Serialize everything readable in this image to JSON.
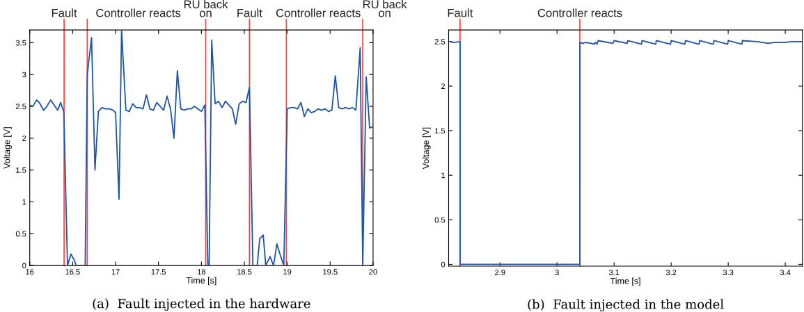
{
  "chart_data": [
    {
      "type": "line",
      "xlabel": "Time [s]",
      "ylabel": "Voltage [V]",
      "xlim": [
        16,
        20
      ],
      "ylim": [
        0,
        3.7
      ],
      "xticks": [
        16,
        16.5,
        17,
        17.5,
        18,
        18.5,
        19,
        19.5,
        20
      ],
      "yticks": [
        0,
        0.5,
        1,
        1.5,
        2,
        2.5,
        3,
        3.5
      ],
      "grid": false,
      "series": [
        {
          "color": "#1c54a8",
          "x": [
            16,
            16.035,
            16.08,
            16.116,
            16.16,
            16.2,
            16.243,
            16.284,
            16.325,
            16.36,
            16.397,
            16.44,
            16.48,
            16.52,
            16.54,
            16.646,
            16.67,
            16.72,
            16.76,
            16.8,
            16.84,
            16.88,
            16.93,
            16.97,
            17.0,
            17.04,
            17.07,
            17.12,
            17.16,
            17.2,
            17.24,
            17.28,
            17.32,
            17.36,
            17.4,
            17.44,
            17.48,
            17.52,
            17.56,
            17.6,
            17.64,
            17.68,
            17.72,
            17.76,
            17.8,
            17.84,
            17.88,
            17.92,
            17.96,
            18.0,
            18.04,
            18.075,
            18.09,
            18.12,
            18.16,
            18.2,
            18.24,
            18.28,
            18.32,
            18.36,
            18.4,
            18.44,
            18.48,
            18.52,
            18.56,
            18.6,
            18.65,
            18.68,
            18.72,
            18.75,
            18.8,
            18.84,
            18.88,
            18.92,
            18.96,
            19.0,
            19.04,
            19.08,
            19.12,
            19.16,
            19.2,
            19.24,
            19.28,
            19.32,
            19.36,
            19.4,
            19.44,
            19.48,
            19.52,
            19.56,
            19.6,
            19.64,
            19.68,
            19.72,
            19.76,
            19.8,
            19.85,
            19.88,
            19.92,
            19.96,
            20.0
          ],
          "values": [
            2.52,
            2.5,
            2.6,
            2.55,
            2.44,
            2.5,
            2.6,
            2.52,
            2.44,
            2.56,
            2.41,
            0,
            0.18,
            0.08,
            0,
            0,
            3.0,
            3.58,
            1.5,
            2.42,
            2.48,
            2.46,
            2.46,
            2.44,
            2.4,
            1.04,
            3.7,
            2.44,
            2.42,
            2.54,
            2.48,
            2.48,
            2.46,
            2.68,
            2.46,
            2.44,
            2.56,
            2.5,
            2.44,
            2.66,
            2.46,
            2.0,
            3.06,
            2.46,
            2.44,
            2.46,
            2.46,
            2.5,
            2.46,
            2.42,
            2.52,
            0,
            0,
            3.54,
            2.54,
            2.58,
            2.48,
            2.58,
            2.52,
            2.46,
            2.22,
            2.54,
            2.58,
            2.56,
            2.8,
            0,
            0,
            0.42,
            0.48,
            0,
            0.14,
            0,
            0.34,
            0.16,
            0,
            2.46,
            2.48,
            2.48,
            2.46,
            2.56,
            2.34,
            2.46,
            2.4,
            2.42,
            2.46,
            2.44,
            2.46,
            2.42,
            2.44,
            2.98,
            2.48,
            2.46,
            2.48,
            2.46,
            2.48,
            2.44,
            3.42,
            0,
            2.96,
            2.16,
            2.18
          ]
        }
      ],
      "ref_lines": [
        {
          "axis": "x",
          "value": 16.4,
          "label": "Fault",
          "color": "#ff3b3b"
        },
        {
          "axis": "x",
          "value": 16.67,
          "label": "Controller reacts",
          "color": "#ff3b3b"
        },
        {
          "axis": "x",
          "value": 18.05,
          "label": "RU back\non",
          "color": "#ff3b3b"
        },
        {
          "axis": "x",
          "value": 18.56,
          "label": "Fault",
          "color": "#ff3b3b"
        },
        {
          "axis": "x",
          "value": 18.99,
          "label": "Controller reacts",
          "color": "#ff3b3b"
        },
        {
          "axis": "x",
          "value": 19.88,
          "label": "RU back\non",
          "color": "#ff3b3b"
        }
      ],
      "annotations": [
        "(a)  Fault injected in the hardware"
      ]
    },
    {
      "type": "line",
      "xlabel": "Time [s]",
      "ylabel": "Voltage [V]",
      "xlim": [
        2.81,
        3.43
      ],
      "ylim": [
        -0.02,
        2.63
      ],
      "xticks": [
        2.9,
        3,
        3.1,
        3.2,
        3.3,
        3.4
      ],
      "yticks": [
        0,
        0.5,
        1,
        1.5,
        2,
        2.5
      ],
      "grid": false,
      "series": [
        {
          "color": "#1c54a8",
          "x": [
            2.81,
            2.82,
            2.83,
            2.83,
            3.04,
            3.04,
            3.045,
            3.05,
            3.06,
            3.065,
            3.067,
            3.07,
            3.072,
            3.098,
            3.1,
            3.123,
            3.124,
            3.148,
            3.149,
            3.173,
            3.174,
            3.199,
            3.2,
            3.224,
            3.225,
            3.249,
            3.25,
            3.274,
            3.275,
            3.299,
            3.3,
            3.324,
            3.325,
            3.35,
            3.37,
            3.38,
            3.4,
            3.41,
            3.43
          ],
          "values": [
            2.5,
            2.49,
            2.5,
            0,
            0,
            2.49,
            2.48,
            2.49,
            2.48,
            2.47,
            2.49,
            2.47,
            2.51,
            2.48,
            2.51,
            2.48,
            2.51,
            2.47,
            2.51,
            2.47,
            2.51,
            2.47,
            2.51,
            2.47,
            2.51,
            2.47,
            2.51,
            2.47,
            2.51,
            2.47,
            2.51,
            2.47,
            2.51,
            2.5,
            2.48,
            2.49,
            2.49,
            2.5,
            2.5
          ]
        }
      ],
      "ref_lines": [
        {
          "axis": "x",
          "value": 2.83,
          "label": "Fault",
          "color": "#ff3b3b"
        },
        {
          "axis": "x",
          "value": 3.04,
          "label": "Controller reacts",
          "color": "#ff3b3b"
        }
      ],
      "annotations": [
        "(b)  Fault injected in the model"
      ]
    }
  ]
}
